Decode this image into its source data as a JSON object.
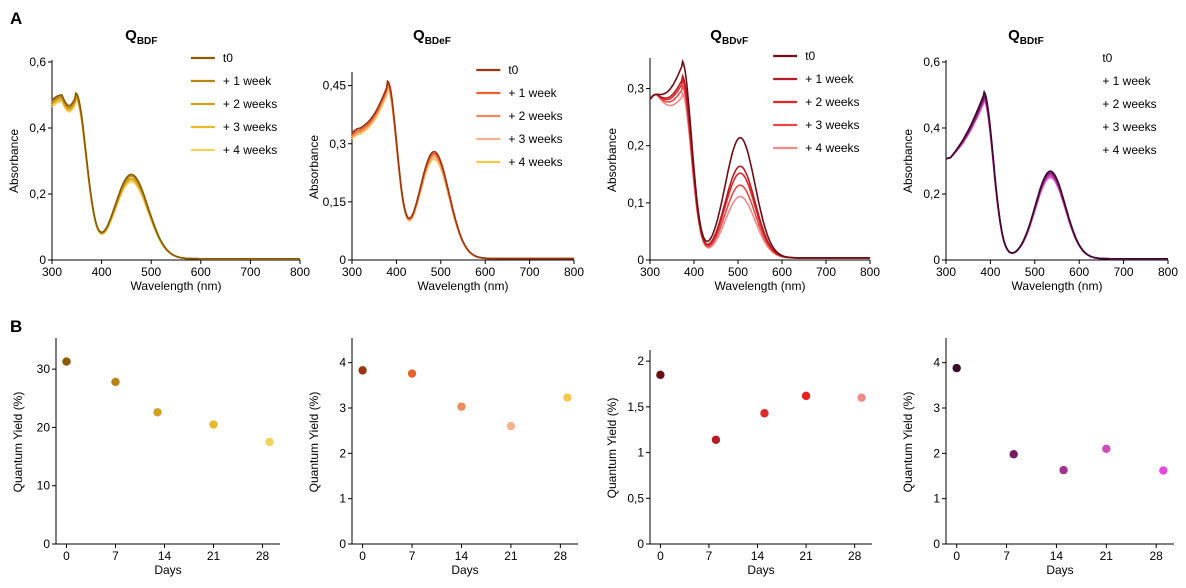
{
  "panel_labels": [
    "A",
    "B"
  ],
  "chart_data": [
    {
      "type": "line",
      "title_main": "Q",
      "title_sub": "BDF",
      "xlabel": "Wavelength (nm)",
      "ylabel": "Absorbance",
      "xlim": [
        300,
        800
      ],
      "ylim": [
        0,
        0.6
      ],
      "xticks": [
        300,
        400,
        500,
        600,
        700,
        800
      ],
      "xtick_labels": [
        "300",
        "400",
        "500",
        "600",
        "700",
        "800"
      ],
      "yticks": [
        0,
        0.2,
        0.4,
        0.6
      ],
      "ytick_labels": [
        "0",
        "0,2",
        "0,4",
        "0,6"
      ],
      "legend": "top-right",
      "series": [
        {
          "name": "t0",
          "color": "#8a5a00",
          "peaks": [
            [
              320,
              0.5
            ],
            [
              348,
              0.495
            ],
            [
              460,
              0.255
            ]
          ]
        },
        {
          "name": "+ 1 week",
          "color": "#b8841a",
          "peaks": [
            [
              320,
              0.495
            ],
            [
              348,
              0.49
            ],
            [
              460,
              0.25
            ]
          ]
        },
        {
          "name": "+ 2 weeks",
          "color": "#d4a020",
          "peaks": [
            [
              320,
              0.49
            ],
            [
              348,
              0.485
            ],
            [
              460,
              0.243
            ]
          ]
        },
        {
          "name": "+ 3 weeks",
          "color": "#e6b82a",
          "peaks": [
            [
              320,
              0.485
            ],
            [
              348,
              0.48
            ],
            [
              460,
              0.238
            ]
          ]
        },
        {
          "name": "+ 4 weeks",
          "color": "#f2d25a",
          "peaks": [
            [
              320,
              0.48
            ],
            [
              348,
              0.475
            ],
            [
              460,
              0.232
            ]
          ]
        }
      ]
    },
    {
      "type": "line",
      "title_main": "Q",
      "title_sub": "BDeF",
      "xlabel": "Wavelength (nm)",
      "ylabel": "Absorbance",
      "xlim": [
        300,
        800
      ],
      "ylim": [
        0,
        0.48
      ],
      "xticks": [
        300,
        400,
        500,
        600,
        700,
        800
      ],
      "xtick_labels": [
        "300",
        "400",
        "500",
        "600",
        "700",
        "800"
      ],
      "yticks": [
        0,
        0.15,
        0.3,
        0.45
      ],
      "ytick_labels": [
        "0",
        "0,15",
        "0,3",
        "0,45"
      ],
      "legend": "top-right",
      "series": [
        {
          "name": "t0",
          "color": "#9c3510",
          "peaks": [
            [
              318,
              0.34
            ],
            [
              380,
              0.45
            ],
            [
              485,
              0.275
            ]
          ]
        },
        {
          "name": "+ 1 week",
          "color": "#e8622a",
          "peaks": [
            [
              318,
              0.335
            ],
            [
              380,
              0.445
            ],
            [
              485,
              0.27
            ]
          ]
        },
        {
          "name": "+ 2 weeks",
          "color": "#f08a5a",
          "peaks": [
            [
              318,
              0.33
            ],
            [
              380,
              0.44
            ],
            [
              485,
              0.265
            ]
          ]
        },
        {
          "name": "+ 3 weeks",
          "color": "#f7b28f",
          "peaks": [
            [
              318,
              0.33
            ],
            [
              380,
              0.435
            ],
            [
              485,
              0.26
            ]
          ]
        },
        {
          "name": "+ 4 weeks",
          "color": "#f5c84a",
          "peaks": [
            [
              318,
              0.325
            ],
            [
              380,
              0.43
            ],
            [
              485,
              0.255
            ]
          ]
        }
      ]
    },
    {
      "type": "line",
      "title_main": "Q",
      "title_sub": "BDvF",
      "xlabel": "Wavelength (nm)",
      "ylabel": "Absorbance",
      "xlim": [
        300,
        800
      ],
      "ylim": [
        0,
        0.35
      ],
      "xticks": [
        300,
        400,
        500,
        600,
        700,
        800
      ],
      "xtick_labels": [
        "300",
        "400",
        "500",
        "600",
        "700",
        "800"
      ],
      "yticks": [
        0,
        0.1,
        0.2,
        0.3
      ],
      "ytick_labels": [
        "0",
        "0,1",
        "0,2",
        "0,3"
      ],
      "legend": "top-right",
      "series": [
        {
          "name": "t0",
          "color": "#6b0f14",
          "peaks": [
            [
              315,
              0.29
            ],
            [
              373,
              0.34
            ],
            [
              505,
              0.21
            ]
          ]
        },
        {
          "name": "+ 1 week",
          "color": "#b51c24",
          "peaks": [
            [
              315,
              0.29
            ],
            [
              373,
              0.315
            ],
            [
              505,
              0.16
            ]
          ]
        },
        {
          "name": "+ 2 weeks",
          "color": "#e02a2a",
          "peaks": [
            [
              315,
              0.29
            ],
            [
              373,
              0.308
            ],
            [
              505,
              0.148
            ]
          ]
        },
        {
          "name": "+ 3 weeks",
          "color": "#f04848",
          "peaks": [
            [
              315,
              0.29
            ],
            [
              373,
              0.298
            ],
            [
              505,
              0.127
            ]
          ]
        },
        {
          "name": "+ 4 weeks",
          "color": "#f28a8a",
          "peaks": [
            [
              315,
              0.29
            ],
            [
              373,
              0.285
            ],
            [
              505,
              0.107
            ]
          ]
        }
      ]
    },
    {
      "type": "line",
      "title_main": "Q",
      "title_sub": "BDtF",
      "xlabel": "Wavelength (nm)",
      "ylabel": "Absorbance",
      "xlim": [
        300,
        800
      ],
      "ylim": [
        0,
        0.6
      ],
      "xticks": [
        300,
        400,
        500,
        600,
        700,
        800
      ],
      "xtick_labels": [
        "300",
        "400",
        "500",
        "600",
        "700",
        "800"
      ],
      "yticks": [
        0,
        0.2,
        0.4,
        0.6
      ],
      "ytick_labels": [
        "0",
        "0,2",
        "0,4",
        "0,6"
      ],
      "legend": "top-right",
      "series": [
        {
          "name": "t0",
          "color": "#3d0a2e",
          "peaks": [
            [
              310,
              0.31
            ],
            [
              385,
              0.5
            ],
            [
              535,
              0.265
            ]
          ]
        },
        {
          "name": "+ 1 week",
          "color": "#7a1a63",
          "peaks": [
            [
              310,
              0.31
            ],
            [
              385,
              0.49
            ],
            [
              535,
              0.26
            ]
          ]
        },
        {
          "name": "+ 2 weeks",
          "color": "#a5318e",
          "peaks": [
            [
              310,
              0.31
            ],
            [
              385,
              0.485
            ],
            [
              535,
              0.255
            ]
          ]
        },
        {
          "name": "+ 3 weeks",
          "color": "#cc4cbb",
          "peaks": [
            [
              310,
              0.31
            ],
            [
              385,
              0.48
            ],
            [
              535,
              0.25
            ]
          ]
        },
        {
          "name": "+ 4 weeks",
          "color": "#e870e0",
          "peaks": [
            [
              310,
              0.31
            ],
            [
              385,
              0.475
            ],
            [
              535,
              0.245
            ]
          ]
        }
      ]
    },
    {
      "type": "scatter",
      "xlabel": "Days",
      "ylabel": "Quantum Yield (%)",
      "xlim": [
        -1.5,
        30.5
      ],
      "ylim": [
        0,
        35
      ],
      "xticks": [
        0,
        7,
        14,
        21,
        28
      ],
      "xtick_labels": [
        "0",
        "7",
        "14",
        "21",
        "28"
      ],
      "yticks": [
        0,
        10,
        20,
        30
      ],
      "ytick_labels": [
        "0",
        "10",
        "20",
        "30"
      ],
      "points": [
        {
          "x": 0,
          "y": 31.3,
          "color": "#8a5a00"
        },
        {
          "x": 7,
          "y": 27.8,
          "color": "#b8841a"
        },
        {
          "x": 13,
          "y": 22.6,
          "color": "#d4a020"
        },
        {
          "x": 21,
          "y": 20.5,
          "color": "#e6b82a"
        },
        {
          "x": 29,
          "y": 17.5,
          "color": "#f2d25a"
        }
      ]
    },
    {
      "type": "scatter",
      "xlabel": "Days",
      "ylabel": "Quantum Yield (%)",
      "xlim": [
        -1.5,
        30.5
      ],
      "ylim": [
        0,
        4.5
      ],
      "xticks": [
        0,
        7,
        14,
        21,
        28
      ],
      "xtick_labels": [
        "0",
        "7",
        "14",
        "21",
        "28"
      ],
      "yticks": [
        0,
        1,
        2,
        3,
        4
      ],
      "ytick_labels": [
        "0",
        "1",
        "2",
        "3",
        "4"
      ],
      "points": [
        {
          "x": 0,
          "y": 3.83,
          "color": "#9c3510"
        },
        {
          "x": 7,
          "y": 3.76,
          "color": "#e8622a"
        },
        {
          "x": 14,
          "y": 3.03,
          "color": "#f08a5a"
        },
        {
          "x": 21,
          "y": 2.6,
          "color": "#f7b28f"
        },
        {
          "x": 29,
          "y": 3.23,
          "color": "#f5c84a"
        }
      ]
    },
    {
      "type": "scatter",
      "xlabel": "Days",
      "ylabel": "Quantum Yield (%)",
      "xlim": [
        -1.5,
        30.5
      ],
      "ylim": [
        0,
        2.1
      ],
      "xticks": [
        0,
        7,
        14,
        21,
        28
      ],
      "xtick_labels": [
        "0",
        "7",
        "14",
        "21",
        "28"
      ],
      "yticks": [
        0,
        0.5,
        1,
        1.5,
        2
      ],
      "ytick_labels": [
        "0",
        "0,5",
        "1",
        "1,5",
        "2"
      ],
      "points": [
        {
          "x": 0,
          "y": 1.85,
          "color": "#6b0f14"
        },
        {
          "x": 8,
          "y": 1.14,
          "color": "#b51c24"
        },
        {
          "x": 15,
          "y": 1.43,
          "color": "#e02a2a"
        },
        {
          "x": 21,
          "y": 1.62,
          "color": "#f01e1e"
        },
        {
          "x": 29,
          "y": 1.6,
          "color": "#f28a8a"
        }
      ]
    },
    {
      "type": "scatter",
      "xlabel": "Days",
      "ylabel": "Quantum Yield (%)",
      "xlim": [
        -1.5,
        30.5
      ],
      "ylim": [
        0,
        4.5
      ],
      "xticks": [
        0,
        7,
        14,
        21,
        28
      ],
      "xtick_labels": [
        "0",
        "7",
        "14",
        "21",
        "28"
      ],
      "yticks": [
        0,
        1,
        2,
        3,
        4
      ],
      "ytick_labels": [
        "0",
        "1",
        "2",
        "3",
        "4"
      ],
      "points": [
        {
          "x": 0,
          "y": 3.88,
          "color": "#3d0a2e"
        },
        {
          "x": 8,
          "y": 1.98,
          "color": "#7a1a63"
        },
        {
          "x": 15,
          "y": 1.63,
          "color": "#a5318e"
        },
        {
          "x": 21,
          "y": 2.1,
          "color": "#cc4cbb"
        },
        {
          "x": 29,
          "y": 1.62,
          "color": "#e848e0"
        }
      ]
    }
  ]
}
